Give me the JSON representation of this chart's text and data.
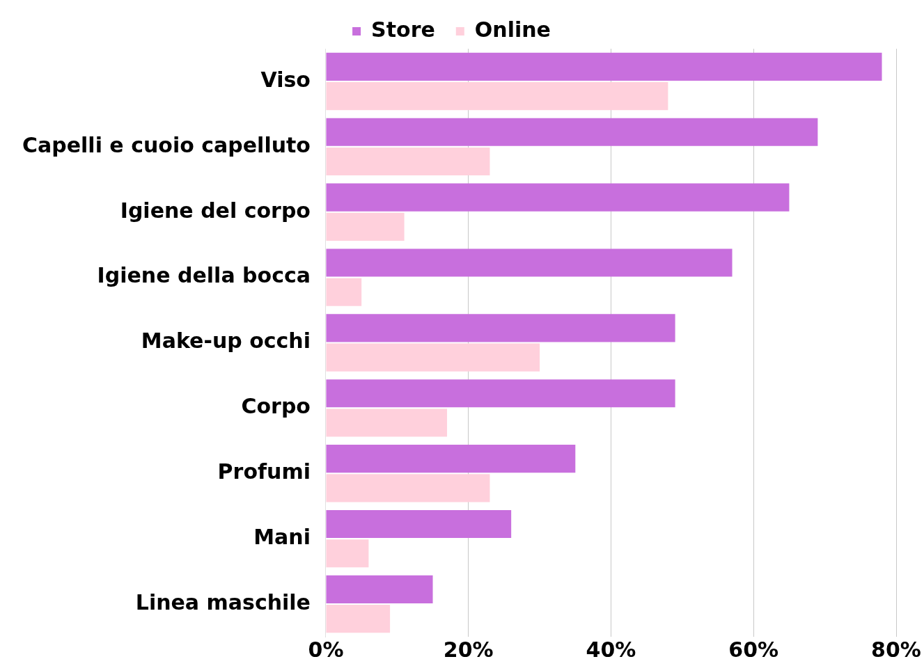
{
  "chart_data": {
    "type": "bar",
    "orientation": "horizontal",
    "categories": [
      "Viso",
      "Capelli e cuoio capelluto",
      "Igiene del corpo",
      "Igiene della bocca",
      "Make-up occhi",
      "Corpo",
      "Profumi",
      "Mani",
      "Linea maschile"
    ],
    "series": [
      {
        "name": "Store",
        "color": "#c86fdd",
        "values": [
          78,
          69,
          65,
          57,
          49,
          49,
          35,
          26,
          15
        ]
      },
      {
        "name": "Online",
        "color": "#ffd0dc",
        "values": [
          48,
          23,
          11,
          5,
          30,
          17,
          23,
          6,
          9
        ]
      }
    ],
    "xlim": [
      0,
      80
    ],
    "xticks": [
      {
        "value": 0,
        "label": "0%"
      },
      {
        "value": 20,
        "label": "20%"
      },
      {
        "value": 40,
        "label": "40%"
      },
      {
        "value": 60,
        "label": "60%"
      },
      {
        "value": 80,
        "label": "80%"
      }
    ],
    "grid": "x",
    "legend": "top"
  }
}
